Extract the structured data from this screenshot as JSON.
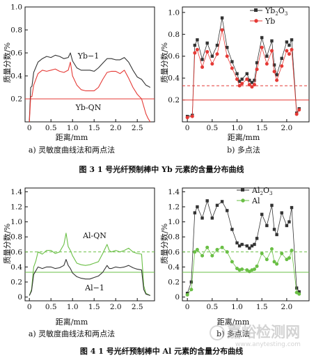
{
  "figure3": {
    "caption": "图 3   1 号光纤预制棒中 Yb 元素的含量分布曲线",
    "left": {
      "subcaption": "a) 灵敏度曲线法和两点法",
      "xlabel": "距离/mm",
      "ylabel": "质量分数/%",
      "annotations": [
        "Yb−1",
        "Yb-QN"
      ]
    },
    "right": {
      "subcaption": "b) 多点法",
      "xlabel": "距离/mm",
      "ylabel": "质量分数/%",
      "legend": [
        "Yb2O3",
        "Yb"
      ]
    }
  },
  "figure4": {
    "caption": "图 4   1 号光纤预制棒中 Al 元素的含量分布曲线",
    "left": {
      "subcaption": "a) 灵敏度曲线法和两点法",
      "xlabel": "距离/mm",
      "ylabel": "质量分数/%",
      "annotations": [
        "Al-QN",
        "Al−1"
      ]
    },
    "right": {
      "subcaption": "b) 多点法",
      "xlabel": "距离/mm",
      "ylabel": "质量分数/%",
      "legend": [
        "Al2O3",
        "Al"
      ]
    }
  },
  "watermark": {
    "text": "嘉峪检测网",
    "url": "www.anytesting.com"
  },
  "colors": {
    "black_series": "#333333",
    "red_series": "#e53935",
    "green_series": "#6abf45",
    "axis": "#111111"
  },
  "chart_data": [
    {
      "id": "fig3a",
      "type": "line",
      "xlim": [
        -0.1,
        2.9
      ],
      "ylim": [
        0,
        1.0
      ],
      "xticks": [
        0,
        0.5,
        1.0,
        1.5,
        2.0,
        2.5
      ],
      "xticklabels": [
        "0",
        "0.5",
        "1.0",
        "1.5",
        "2.0",
        "2.5"
      ],
      "yticks": [
        0.2,
        0.4,
        0.6,
        0.8,
        1.0
      ],
      "yticklabels": [
        "0.2",
        "0.4",
        "0.6",
        "0.8",
        "1.0"
      ],
      "hlines": [
        {
          "y": 0.2,
          "style": "solid",
          "color": "#e53935"
        }
      ],
      "series": [
        {
          "name": "Yb−1",
          "color": "#333333",
          "x": [
            0.0,
            0.03,
            0.06,
            0.1,
            0.2,
            0.3,
            0.4,
            0.5,
            0.6,
            0.7,
            0.8,
            0.9,
            0.95,
            1.0,
            1.1,
            1.2,
            1.3,
            1.4,
            1.5,
            1.6,
            1.7,
            1.8,
            1.9,
            2.0,
            2.1,
            2.2,
            2.3,
            2.4,
            2.5,
            2.6,
            2.7,
            2.75,
            2.8
          ],
          "y": [
            0.02,
            0.3,
            0.31,
            0.43,
            0.52,
            0.55,
            0.57,
            0.56,
            0.58,
            0.57,
            0.55,
            0.56,
            0.6,
            0.53,
            0.47,
            0.45,
            0.45,
            0.45,
            0.44,
            0.47,
            0.51,
            0.55,
            0.55,
            0.54,
            0.54,
            0.56,
            0.52,
            0.45,
            0.39,
            0.37,
            0.32,
            0.31,
            0.3
          ]
        },
        {
          "name": "Yb-QN",
          "color": "#e53935",
          "x": [
            0.0,
            0.03,
            0.06,
            0.1,
            0.2,
            0.3,
            0.4,
            0.5,
            0.6,
            0.7,
            0.8,
            0.9,
            0.95,
            1.0,
            1.1,
            1.2,
            1.3,
            1.4,
            1.5,
            1.6,
            1.7,
            1.8,
            1.9,
            2.0,
            2.1,
            2.2,
            2.3,
            2.4,
            2.5,
            2.6,
            2.7,
            2.75,
            2.8
          ],
          "y": [
            0.0,
            0.22,
            0.22,
            0.32,
            0.42,
            0.45,
            0.44,
            0.45,
            0.46,
            0.44,
            0.43,
            0.45,
            0.52,
            0.4,
            0.32,
            0.28,
            0.27,
            0.27,
            0.27,
            0.3,
            0.37,
            0.43,
            0.44,
            0.44,
            0.42,
            0.45,
            0.38,
            0.3,
            0.24,
            0.2,
            0.07,
            0.03,
            0.0
          ]
        }
      ]
    },
    {
      "id": "fig3b",
      "type": "line",
      "xlim": [
        -0.1,
        2.45
      ],
      "ylim": [
        0,
        1.05
      ],
      "xticks": [
        0,
        0.5,
        1.0,
        1.5,
        2.0
      ],
      "xticklabels": [
        "0",
        "0.5",
        "1.0",
        "1.5",
        "2.0"
      ],
      "yticks": [
        0.2,
        0.4,
        0.6,
        0.8,
        1.0
      ],
      "yticklabels": [
        "0.2",
        "0.4",
        "0.6",
        "0.8",
        "1.0"
      ],
      "hlines": [
        {
          "y": 0.33,
          "style": "dashed",
          "color": "#e53935"
        },
        {
          "y": 0.2,
          "style": "solid",
          "color": "#e53935"
        }
      ],
      "series": [
        {
          "name": "Yb2O3",
          "color": "#333333",
          "marker": "square",
          "x": [
            0.0,
            0.1,
            0.15,
            0.2,
            0.3,
            0.4,
            0.5,
            0.6,
            0.7,
            0.8,
            0.9,
            1.0,
            1.05,
            1.1,
            1.2,
            1.25,
            1.3,
            1.35,
            1.4,
            1.5,
            1.6,
            1.7,
            1.75,
            1.8,
            1.9,
            2.0,
            2.05,
            2.1,
            2.2,
            2.25
          ],
          "y": [
            0.05,
            0.06,
            0.7,
            0.75,
            0.57,
            0.72,
            0.6,
            0.7,
            0.95,
            0.68,
            0.55,
            0.44,
            0.37,
            0.39,
            0.44,
            0.38,
            0.36,
            0.38,
            0.54,
            0.77,
            0.6,
            0.74,
            0.52,
            0.43,
            0.58,
            0.73,
            0.7,
            0.75,
            0.08,
            0.12
          ]
        },
        {
          "name": "Yb",
          "color": "#e53935",
          "marker": "circle",
          "x": [
            0.0,
            0.1,
            0.15,
            0.2,
            0.3,
            0.4,
            0.5,
            0.6,
            0.7,
            0.8,
            0.9,
            1.0,
            1.05,
            1.1,
            1.2,
            1.25,
            1.3,
            1.35,
            1.4,
            1.5,
            1.6,
            1.7,
            1.75,
            1.8,
            1.9,
            2.0,
            2.05,
            2.1,
            2.2,
            2.25
          ],
          "y": [
            0.04,
            0.05,
            0.63,
            0.66,
            0.5,
            0.64,
            0.53,
            0.62,
            0.84,
            0.6,
            0.49,
            0.39,
            0.33,
            0.35,
            0.39,
            0.34,
            0.32,
            0.34,
            0.48,
            0.68,
            0.53,
            0.65,
            0.46,
            0.38,
            0.51,
            0.65,
            0.62,
            0.66,
            0.07,
            0.11
          ]
        }
      ]
    },
    {
      "id": "fig4a",
      "type": "line",
      "xlim": [
        -0.1,
        2.9
      ],
      "ylim": [
        -0.05,
        1.45
      ],
      "xticks": [
        0,
        0.5,
        1.0,
        1.5,
        2.0,
        2.5
      ],
      "xticklabels": [
        "0",
        "0.5",
        "1.0",
        "1.5",
        "2.0",
        "2.5"
      ],
      "yticks": [
        0,
        0.2,
        0.4,
        0.6,
        0.8,
        1.0,
        1.2,
        1.4
      ],
      "yticklabels": [
        "0",
        "0.2",
        "0.4",
        "0.6",
        "0.8",
        "1.0",
        "1.2",
        "1.4"
      ],
      "hlines": [
        {
          "y": 0.6,
          "style": "dashed",
          "color": "#6abf45"
        },
        {
          "y": 0.33,
          "style": "solid",
          "color": "#6abf45"
        }
      ],
      "series": [
        {
          "name": "Al-QN",
          "color": "#6abf45",
          "x": [
            0.0,
            0.05,
            0.1,
            0.15,
            0.2,
            0.3,
            0.4,
            0.5,
            0.6,
            0.7,
            0.8,
            0.85,
            0.9,
            0.95,
            1.0,
            1.1,
            1.2,
            1.3,
            1.4,
            1.5,
            1.6,
            1.7,
            1.8,
            1.85,
            1.9,
            2.0,
            2.1,
            2.2,
            2.3,
            2.4,
            2.5,
            2.6,
            2.65,
            2.7,
            2.8
          ],
          "y": [
            0.02,
            0.1,
            0.4,
            0.48,
            0.6,
            0.57,
            0.62,
            0.62,
            0.58,
            0.6,
            0.7,
            0.85,
            0.67,
            0.62,
            0.55,
            0.45,
            0.43,
            0.42,
            0.43,
            0.45,
            0.47,
            0.58,
            0.7,
            0.62,
            0.6,
            0.62,
            0.6,
            0.62,
            0.65,
            0.6,
            0.58,
            0.57,
            0.15,
            0.05,
            0.02
          ]
        },
        {
          "name": "Al−1",
          "color": "#333333",
          "x": [
            0.0,
            0.05,
            0.1,
            0.15,
            0.2,
            0.3,
            0.4,
            0.5,
            0.6,
            0.7,
            0.8,
            0.85,
            0.9,
            0.95,
            1.0,
            1.1,
            1.2,
            1.3,
            1.4,
            1.5,
            1.6,
            1.7,
            1.8,
            1.85,
            1.9,
            2.0,
            2.1,
            2.2,
            2.3,
            2.4,
            2.5,
            2.6,
            2.65,
            2.7,
            2.8
          ],
          "y": [
            0.02,
            0.08,
            0.3,
            0.35,
            0.4,
            0.38,
            0.4,
            0.4,
            0.38,
            0.39,
            0.42,
            0.5,
            0.42,
            0.38,
            0.32,
            0.27,
            0.25,
            0.24,
            0.24,
            0.26,
            0.28,
            0.33,
            0.42,
            0.38,
            0.38,
            0.4,
            0.39,
            0.4,
            0.42,
            0.39,
            0.37,
            0.36,
            0.1,
            0.04,
            0.02
          ]
        }
      ]
    },
    {
      "id": "fig4b",
      "type": "line",
      "xlim": [
        -0.1,
        2.45
      ],
      "ylim": [
        -0.05,
        1.45
      ],
      "xticks": [
        0,
        0.5,
        1.0,
        1.5,
        2.0
      ],
      "xticklabels": [
        "0",
        "0.5",
        "1.0",
        "1.5",
        "2.0"
      ],
      "yticks": [
        0,
        0.2,
        0.4,
        0.6,
        0.8,
        1.0,
        1.2,
        1.4
      ],
      "yticklabels": [
        "0",
        "0.2",
        "0.4",
        "0.6",
        "0.8",
        "1.0",
        "1.2",
        "1.4"
      ],
      "hlines": [
        {
          "y": 0.6,
          "style": "dashed",
          "color": "#6abf45"
        },
        {
          "y": 0.33,
          "style": "solid",
          "color": "#6abf45"
        }
      ],
      "series": [
        {
          "name": "Al2O3",
          "color": "#333333",
          "marker": "square",
          "x": [
            0.0,
            0.08,
            0.15,
            0.2,
            0.3,
            0.4,
            0.5,
            0.6,
            0.7,
            0.8,
            0.9,
            1.0,
            1.05,
            1.1,
            1.2,
            1.25,
            1.3,
            1.35,
            1.4,
            1.5,
            1.6,
            1.7,
            1.75,
            1.8,
            1.9,
            2.0,
            2.05,
            2.1,
            2.2,
            2.25
          ],
          "y": [
            0.05,
            0.2,
            1.12,
            1.2,
            1.05,
            1.28,
            1.05,
            1.22,
            1.27,
            1.15,
            0.9,
            0.72,
            0.68,
            0.7,
            0.68,
            0.65,
            0.68,
            0.7,
            0.78,
            1.1,
            0.95,
            1.22,
            0.9,
            0.83,
            1.12,
            0.95,
            1.0,
            1.19,
            0.12,
            0.07
          ]
        },
        {
          "name": "Al",
          "color": "#6abf45",
          "marker": "circle",
          "x": [
            0.0,
            0.08,
            0.15,
            0.2,
            0.3,
            0.4,
            0.5,
            0.6,
            0.7,
            0.8,
            0.9,
            1.0,
            1.05,
            1.1,
            1.2,
            1.25,
            1.3,
            1.35,
            1.4,
            1.5,
            1.6,
            1.7,
            1.75,
            1.8,
            1.9,
            2.0,
            2.05,
            2.1,
            2.2,
            2.25
          ],
          "y": [
            0.03,
            0.1,
            0.6,
            0.63,
            0.55,
            0.66,
            0.55,
            0.63,
            0.66,
            0.6,
            0.47,
            0.38,
            0.36,
            0.37,
            0.36,
            0.34,
            0.36,
            0.37,
            0.41,
            0.58,
            0.5,
            0.64,
            0.47,
            0.44,
            0.58,
            0.5,
            0.52,
            0.62,
            0.06,
            0.04
          ]
        }
      ]
    }
  ]
}
